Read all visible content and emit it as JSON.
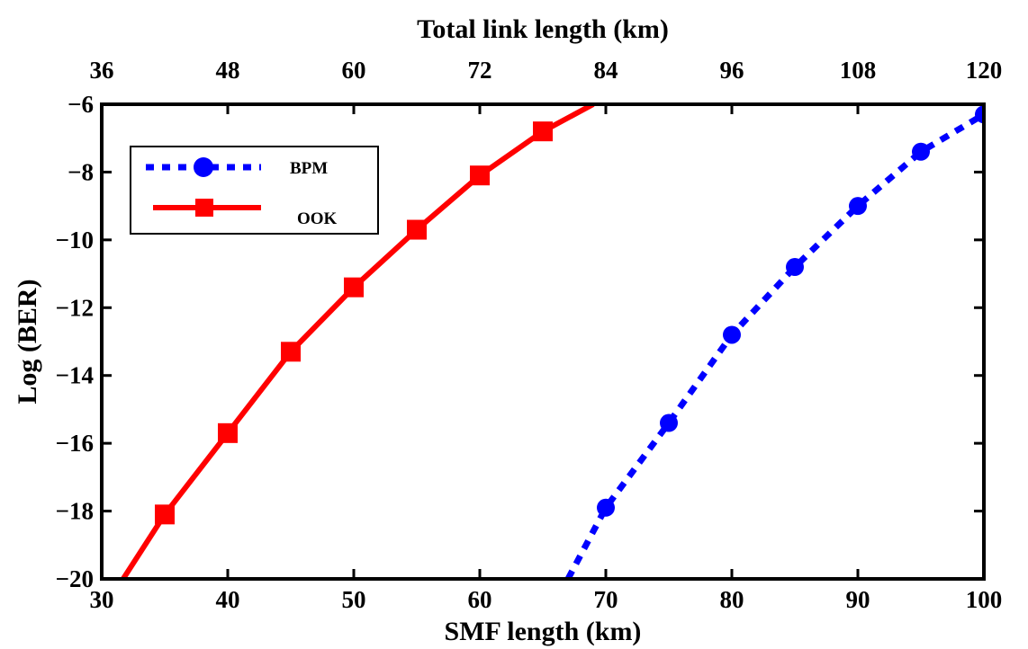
{
  "chart_data": {
    "type": "line",
    "xlabel": "SMF length (km)",
    "x2label": "Total link length (km)",
    "ylabel": "Log (BER)",
    "xlim": [
      30,
      100
    ],
    "ylim": [
      -20,
      -6
    ],
    "xticks": [
      30,
      40,
      50,
      60,
      70,
      80,
      90,
      100
    ],
    "x2ticks": [
      36,
      48,
      60,
      72,
      84,
      96,
      108,
      120
    ],
    "yticks": [
      -20,
      -18,
      -16,
      -14,
      -12,
      -10,
      -8,
      -6
    ],
    "grid": false,
    "legend_position": "top-left",
    "series": [
      {
        "name": "BPM",
        "color": "#0000ff",
        "line_style": "dotted",
        "marker": "circle",
        "x": [
          70,
          75,
          80,
          85,
          90,
          95,
          100
        ],
        "y": [
          -17.9,
          -15.4,
          -12.8,
          -10.8,
          -9.0,
          -7.4,
          -6.3
        ],
        "line_extension": {
          "x": [
            67.0,
            70
          ],
          "y": [
            -20,
            -17.9
          ]
        }
      },
      {
        "name": "OOK",
        "color": "#ff0000",
        "line_style": "solid",
        "marker": "square",
        "x": [
          35,
          40,
          45,
          50,
          55,
          60,
          65
        ],
        "y": [
          -18.1,
          -15.7,
          -13.3,
          -11.4,
          -9.7,
          -8.1,
          -6.8
        ],
        "line_extension_start": {
          "x": [
            31.7,
            35
          ],
          "y": [
            -20,
            -18.1
          ]
        },
        "line_extension_end": {
          "x": [
            65,
            69.0
          ],
          "y": [
            -6.8,
            -6.0
          ]
        }
      }
    ]
  }
}
